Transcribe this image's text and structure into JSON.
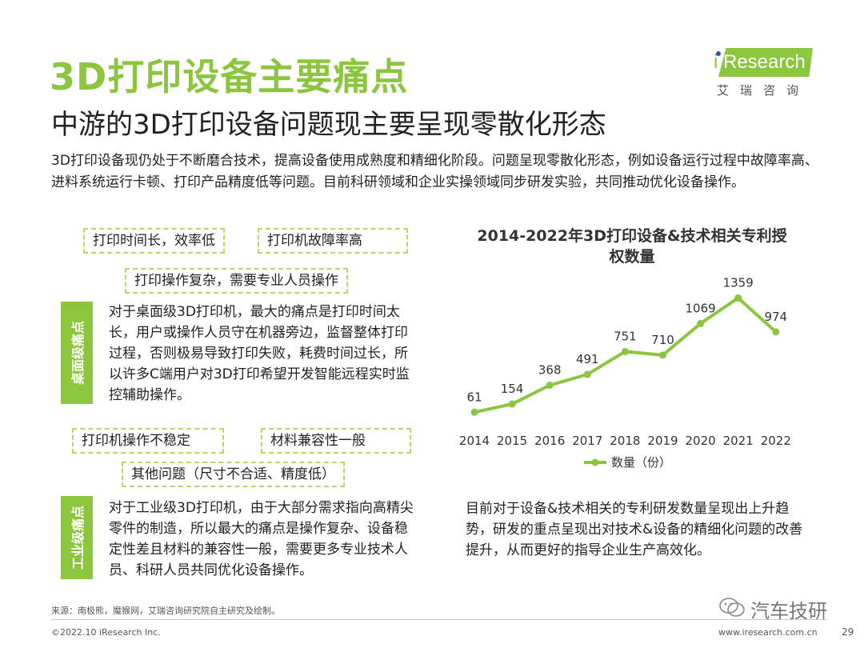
{
  "title": "3D打印设备主要痛点",
  "subtitle": "中游的3D打印设备问题现主要呈现零散化形态",
  "logo": {
    "brand": "iResearch",
    "brand_i": "i",
    "brand_rest": "Research",
    "cn": "艾瑞咨询"
  },
  "intro": "3D打印设备现仍处于不断磨合技术，提高设备使用成熟度和精细化阶段。问题呈现零散化形态，例如设备运行过程中故障率高、进料系统运行卡顿、打印产品精度低等问题。目前科研领域和企业实操领域同步研发实验，共同推动优化设备操作。",
  "desktop": {
    "label": "桌面级痛点",
    "tags": [
      "打印时间长，效率低",
      "打印机故障率高",
      "打印操作复杂，需要专业人员操作"
    ],
    "text": "对于桌面级3D打印机，最大的痛点是打印时间太长，用户或操作人员守在机器旁边，监督整体打印过程，否则极易导致打印失败，耗费时间过长，所以许多C端用户对3D打印希望开发智能远程实时监控辅助操作。"
  },
  "industrial": {
    "label": "工业级痛点",
    "tags": [
      "打印机操作不稳定",
      "材料兼容性一般",
      "其他问题（尺寸不合适、精度低）"
    ],
    "text": "对于工业级3D打印机，由于大部分需求指向高精尖零件的制造，所以最大的痛点是操作复杂、设备稳定性差且材料的兼容性一般，需要更多专业技术人员、科研人员共同优化设备操作。"
  },
  "chart_data": {
    "type": "line",
    "title": "2014-2022年3D打印设备&技术相关专利授权数量",
    "categories": [
      "2014",
      "2015",
      "2016",
      "2017",
      "2018",
      "2019",
      "2020",
      "2021",
      "2022"
    ],
    "series": [
      {
        "name": "数量（份）",
        "values": [
          61,
          154,
          368,
          491,
          751,
          710,
          1069,
          1359,
          974
        ]
      }
    ],
    "ylim": [
      0,
      1400
    ],
    "grid": false,
    "legend": "bottom",
    "color": "#8cc63f"
  },
  "chart_note": "目前对于设备&技术相关的专利研发数量呈现出上升趋势，研发的重点呈现出对技术&设备的精细化问题的改善提升，从而更好的指导企业生产高效化。",
  "source": "来源：南极熊，魔猴网，艾瑞咨询研究院自主研究及绘制。",
  "copyright": "©2022.10 iResearch Inc.",
  "site": "www.iresearch.com.cn",
  "page": "29",
  "watermark": "汽车技研"
}
